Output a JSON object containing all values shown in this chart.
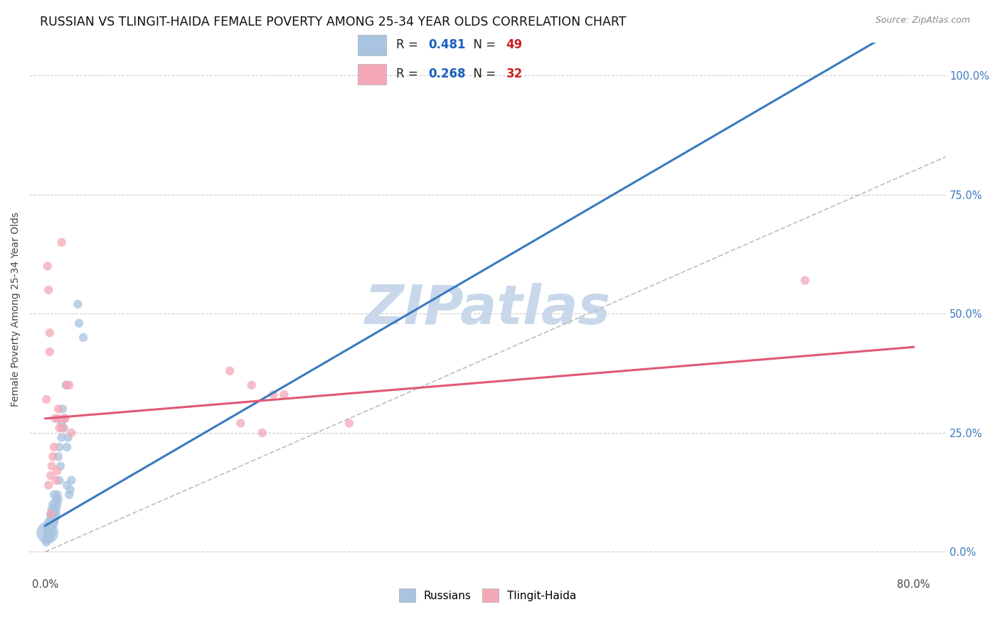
{
  "title": "RUSSIAN VS TLINGIT-HAIDA FEMALE POVERTY AMONG 25-34 YEAR OLDS CORRELATION CHART",
  "source": "Source: ZipAtlas.com",
  "ylabel": "Female Poverty Among 25-34 Year Olds",
  "R_russian": 0.481,
  "N_russian": 49,
  "R_tlingit": 0.268,
  "N_tlingit": 32,
  "russian_color": "#a8c4e0",
  "tlingit_color": "#f4a8b8",
  "russian_line_color": "#3a7abf",
  "tlingit_line_color": "#e05878",
  "diagonal_color": "#bbbbbb",
  "legend_r_color": "#1a5fbf",
  "legend_n_color": "#cc2222",
  "right_tick_color": "#3a7abf",
  "background_color": "#ffffff",
  "watermark_color": "#c8d8ea",
  "watermark_text": "ZIPatlas",
  "russians_scatter": [
    [
      0.002,
      0.04
    ],
    [
      0.003,
      0.05
    ],
    [
      0.003,
      0.03
    ],
    [
      0.004,
      0.04
    ],
    [
      0.004,
      0.06
    ],
    [
      0.005,
      0.05
    ],
    [
      0.005,
      0.07
    ],
    [
      0.005,
      0.08
    ],
    [
      0.005,
      0.06
    ],
    [
      0.006,
      0.05
    ],
    [
      0.006,
      0.07
    ],
    [
      0.006,
      0.09
    ],
    [
      0.007,
      0.06
    ],
    [
      0.007,
      0.08
    ],
    [
      0.007,
      0.1
    ],
    [
      0.007,
      0.07
    ],
    [
      0.008,
      0.08
    ],
    [
      0.008,
      0.12
    ],
    [
      0.008,
      0.09
    ],
    [
      0.008,
      0.06
    ],
    [
      0.009,
      0.1
    ],
    [
      0.009,
      0.07
    ],
    [
      0.01,
      0.08
    ],
    [
      0.01,
      0.11
    ],
    [
      0.01,
      0.09
    ],
    [
      0.011,
      0.1
    ],
    [
      0.011,
      0.12
    ],
    [
      0.012,
      0.11
    ],
    [
      0.012,
      0.2
    ],
    [
      0.013,
      0.15
    ],
    [
      0.013,
      0.22
    ],
    [
      0.014,
      0.18
    ],
    [
      0.015,
      0.24
    ],
    [
      0.015,
      0.27
    ],
    [
      0.016,
      0.3
    ],
    [
      0.017,
      0.26
    ],
    [
      0.018,
      0.28
    ],
    [
      0.019,
      0.35
    ],
    [
      0.02,
      0.14
    ],
    [
      0.02,
      0.22
    ],
    [
      0.021,
      0.24
    ],
    [
      0.022,
      0.12
    ],
    [
      0.023,
      0.13
    ],
    [
      0.024,
      0.15
    ],
    [
      0.03,
      0.52
    ],
    [
      0.031,
      0.48
    ],
    [
      0.035,
      0.45
    ],
    [
      0.001,
      0.025
    ],
    [
      0.001,
      0.02
    ]
  ],
  "tlingit_scatter": [
    [
      0.001,
      0.32
    ],
    [
      0.002,
      0.6
    ],
    [
      0.003,
      0.55
    ],
    [
      0.004,
      0.46
    ],
    [
      0.003,
      0.14
    ],
    [
      0.004,
      0.42
    ],
    [
      0.005,
      0.16
    ],
    [
      0.006,
      0.18
    ],
    [
      0.007,
      0.2
    ],
    [
      0.008,
      0.22
    ],
    [
      0.009,
      0.28
    ],
    [
      0.01,
      0.15
    ],
    [
      0.011,
      0.17
    ],
    [
      0.012,
      0.3
    ],
    [
      0.012,
      0.28
    ],
    [
      0.013,
      0.26
    ],
    [
      0.015,
      0.65
    ],
    [
      0.016,
      0.26
    ],
    [
      0.017,
      0.28
    ],
    [
      0.018,
      0.28
    ],
    [
      0.02,
      0.35
    ],
    [
      0.022,
      0.35
    ],
    [
      0.024,
      0.25
    ],
    [
      0.17,
      0.38
    ],
    [
      0.18,
      0.27
    ],
    [
      0.19,
      0.35
    ],
    [
      0.2,
      0.25
    ],
    [
      0.21,
      0.33
    ],
    [
      0.22,
      0.33
    ],
    [
      0.28,
      0.27
    ],
    [
      0.7,
      0.57
    ],
    [
      0.005,
      0.08
    ]
  ],
  "xlim": [
    -0.015,
    0.83
  ],
  "ylim": [
    -0.05,
    1.07
  ],
  "xticks": [
    0.0,
    0.1,
    0.2,
    0.3,
    0.4,
    0.5,
    0.6,
    0.7,
    0.8
  ],
  "xtick_show": [
    0.0,
    0.8
  ],
  "ytick_vals": [
    0.0,
    0.25,
    0.5,
    0.75,
    1.0
  ],
  "ytick_labels": [
    "0.0%",
    "25.0%",
    "50.0%",
    "75.0%",
    "100.0%"
  ],
  "title_fontsize": 12.5,
  "axis_label_fontsize": 10,
  "tick_fontsize": 10.5
}
